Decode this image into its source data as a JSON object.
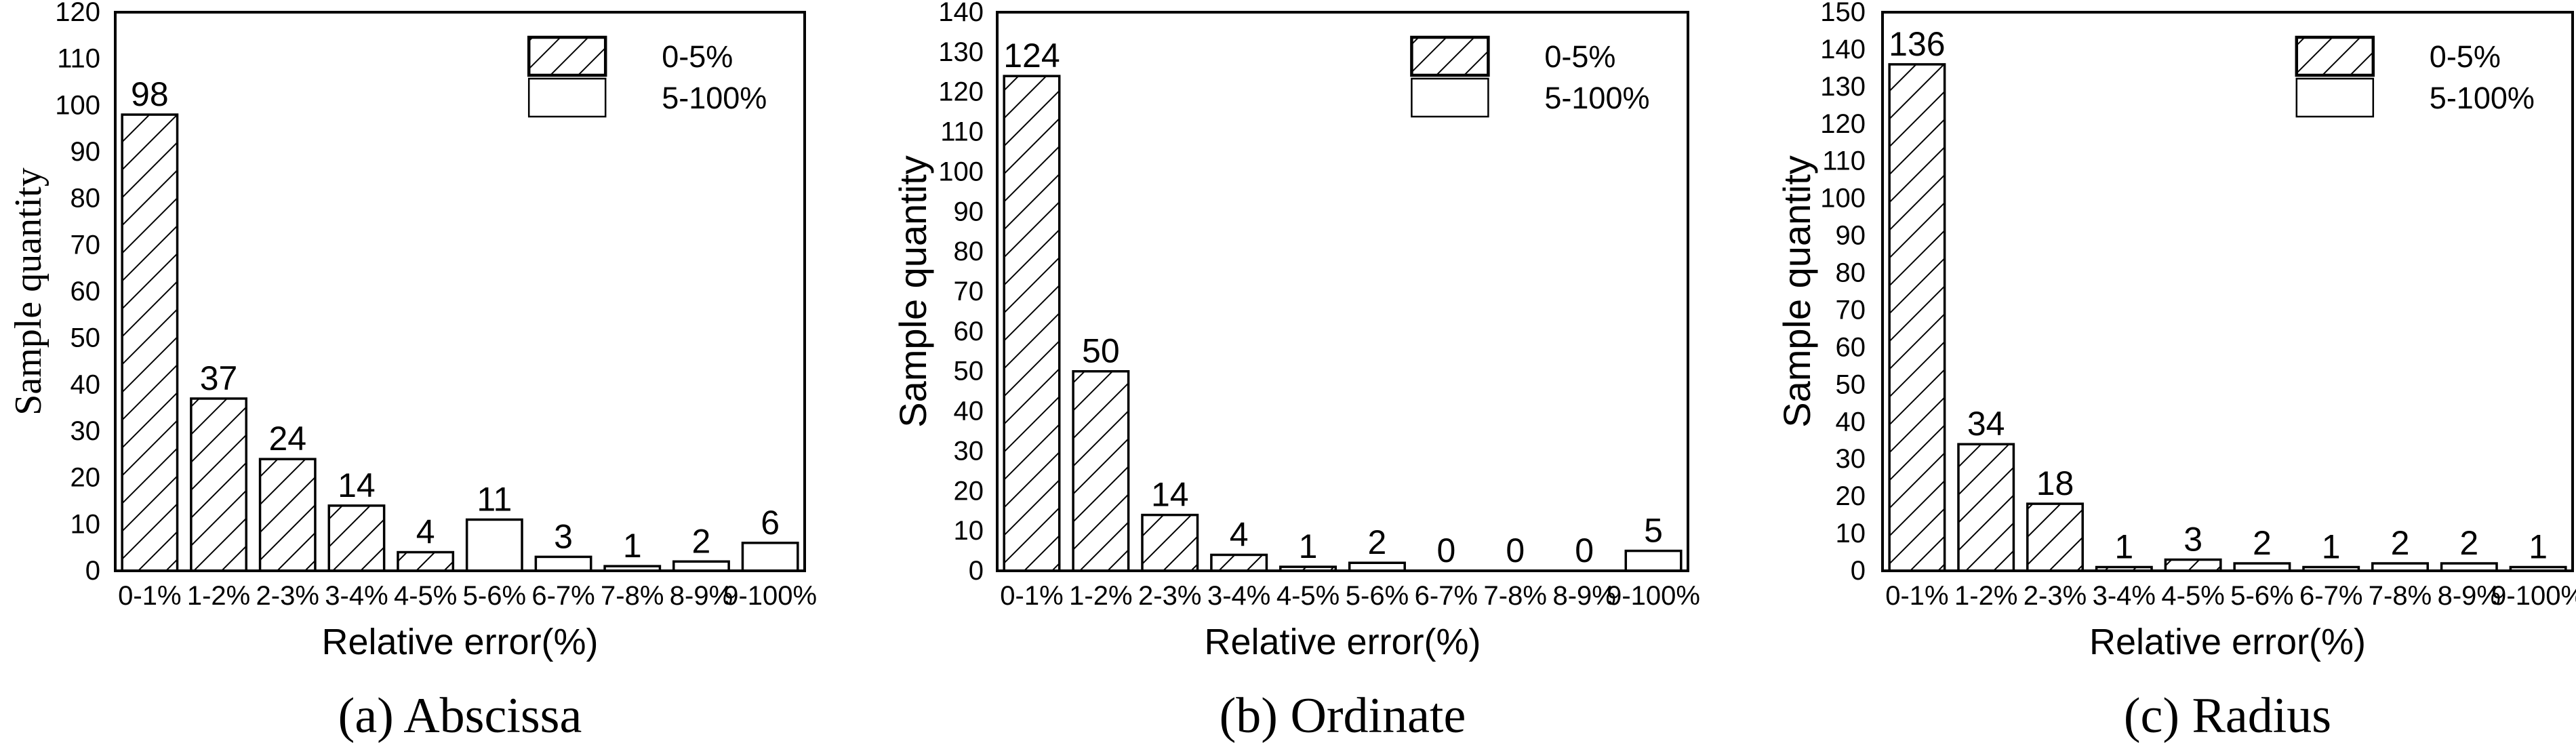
{
  "figure": {
    "background_color": "#ffffff",
    "ink_color": "#000000"
  },
  "chart_data": [
    {
      "type": "bar",
      "caption": "(a) Abscissa",
      "xlabel": "Relative error(%)",
      "ylabel": "Sample quantity",
      "categories": [
        "0-1%",
        "1-2%",
        "2-3%",
        "3-4%",
        "4-5%",
        "5-6%",
        "6-7%",
        "7-8%",
        "8-9%",
        "9-100%"
      ],
      "series": [
        {
          "name": "0-5%",
          "style": "diagonal-hatch",
          "values": [
            98,
            37,
            24,
            14,
            4,
            null,
            null,
            null,
            null,
            null
          ]
        },
        {
          "name": "5-100%",
          "style": "plain",
          "values": [
            null,
            null,
            null,
            null,
            null,
            11,
            3,
            1,
            2,
            6
          ]
        }
      ],
      "bar_value_labels": [
        98,
        37,
        24,
        14,
        4,
        11,
        3,
        1,
        2,
        6
      ],
      "ylim": [
        0,
        120
      ],
      "ytick_step": 10,
      "grid": false,
      "legend_position": "top-right",
      "legend": [
        {
          "label": "0-5%",
          "style": "diagonal-hatch"
        },
        {
          "label": "5-100%",
          "style": "plain"
        }
      ]
    },
    {
      "type": "bar",
      "caption": "(b) Ordinate",
      "xlabel": "Relative error(%)",
      "ylabel": "Sample quantity",
      "categories": [
        "0-1%",
        "1-2%",
        "2-3%",
        "3-4%",
        "4-5%",
        "5-6%",
        "6-7%",
        "7-8%",
        "8-9%",
        "9-100%"
      ],
      "series": [
        {
          "name": "0-5%",
          "style": "diagonal-hatch",
          "values": [
            124,
            50,
            14,
            4,
            1,
            null,
            null,
            null,
            null,
            null
          ]
        },
        {
          "name": "5-100%",
          "style": "plain",
          "values": [
            null,
            null,
            null,
            null,
            null,
            2,
            0,
            0,
            0,
            5
          ]
        }
      ],
      "bar_value_labels": [
        124,
        50,
        14,
        4,
        1,
        2,
        0,
        0,
        0,
        5
      ],
      "ylim": [
        0,
        140
      ],
      "ytick_step": 10,
      "grid": false,
      "legend_position": "top-right",
      "legend": [
        {
          "label": "0-5%",
          "style": "diagonal-hatch"
        },
        {
          "label": "5-100%",
          "style": "plain"
        }
      ]
    },
    {
      "type": "bar",
      "caption": "(c) Radius",
      "xlabel": "Relative error(%)",
      "ylabel": "Sample quantity",
      "categories": [
        "0-1%",
        "1-2%",
        "2-3%",
        "3-4%",
        "4-5%",
        "5-6%",
        "6-7%",
        "7-8%",
        "8-9%",
        "9-100%"
      ],
      "series": [
        {
          "name": "0-5%",
          "style": "diagonal-hatch",
          "values": [
            136,
            34,
            18,
            1,
            3,
            null,
            null,
            null,
            null,
            null
          ]
        },
        {
          "name": "5-100%",
          "style": "plain",
          "values": [
            null,
            null,
            null,
            null,
            null,
            2,
            1,
            2,
            2,
            1
          ]
        }
      ],
      "bar_value_labels": [
        136,
        34,
        18,
        1,
        3,
        2,
        1,
        2,
        2,
        1
      ],
      "ylim": [
        0,
        150
      ],
      "ytick_step": 10,
      "grid": false,
      "legend_position": "top-right",
      "legend": [
        {
          "label": "0-5%",
          "style": "diagonal-hatch"
        },
        {
          "label": "5-100%",
          "style": "plain"
        }
      ]
    }
  ]
}
